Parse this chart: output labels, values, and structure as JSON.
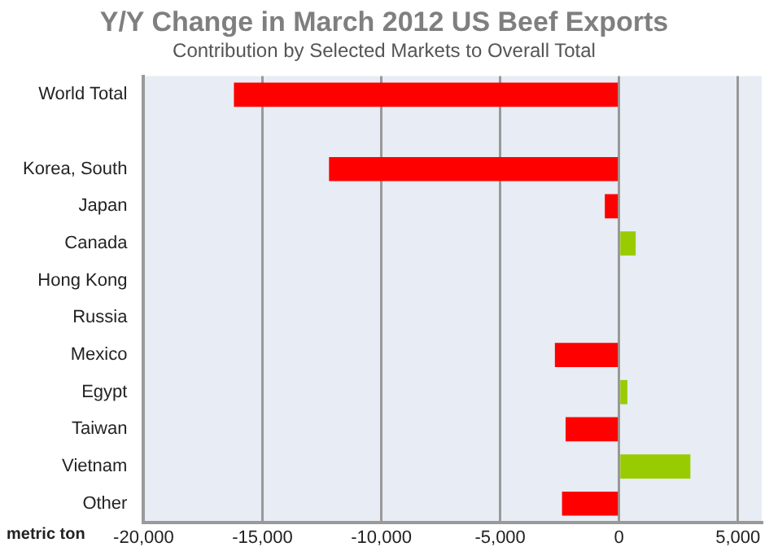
{
  "chart_data": {
    "type": "bar",
    "orientation": "horizontal",
    "title": "Y/Y Change in March 2012 US Beef Exports",
    "subtitle": "Contribution by Selected Markets to Overall Total",
    "xlabel": "metric ton",
    "categories": [
      "World Total",
      null,
      "Korea, South",
      "Japan",
      "Canada",
      "Hong Kong",
      "Russia",
      "Mexico",
      "Egypt",
      "Taiwan",
      "Vietnam",
      "Other"
    ],
    "values": [
      -16200,
      null,
      -12200,
      -600,
      700,
      0,
      0,
      -2700,
      350,
      -2250,
      3000,
      -2400
    ],
    "colors": [
      "#ff0000",
      "#ff0000",
      "#ff0000",
      "#ff0000",
      "#99cc00",
      "#99cc00",
      "#99cc00",
      "#ff0000",
      "#99cc00",
      "#ff0000",
      "#99cc00",
      "#ff0000"
    ],
    "xlim": [
      -20000,
      6000
    ],
    "xticks": [
      {
        "value": -20000,
        "label": "-20,000"
      },
      {
        "value": -15000,
        "label": "-15,000"
      },
      {
        "value": -10000,
        "label": "-10,000"
      },
      {
        "value": -5000,
        "label": "-5,000"
      },
      0,
      {
        "value": 5000,
        "label": "5,000"
      }
    ],
    "grid": "x",
    "legend": false
  }
}
